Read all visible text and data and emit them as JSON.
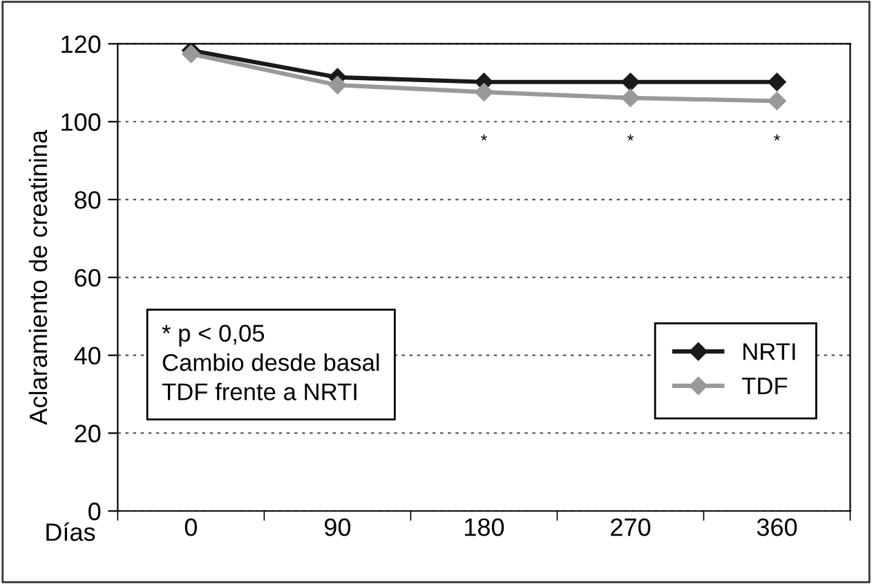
{
  "chart_data": {
    "type": "line",
    "ylabel": "Aclaramiento de creatinina",
    "xlabel": "Días",
    "categories": [
      "0",
      "90",
      "180",
      "270",
      "360"
    ],
    "series": [
      {
        "name": "NRTI",
        "color": "#1a1a1a",
        "values": [
          118.3,
          111.4,
          110.2,
          110.2,
          110.2
        ]
      },
      {
        "name": "TDF",
        "color": "#999999",
        "values": [
          117.4,
          109.4,
          107.6,
          106.1,
          105.3
        ]
      }
    ],
    "ylim": [
      0,
      120
    ],
    "yticks": [
      0,
      20,
      40,
      60,
      80,
      100,
      120
    ],
    "grid": "y",
    "legend": "right",
    "marker": "diamond",
    "line_style": "solid",
    "annotations": [
      "*",
      "*",
      "*",
      "* p < 0,05\nCambio desde basal\nTDF frente a NRTI"
    ]
  }
}
